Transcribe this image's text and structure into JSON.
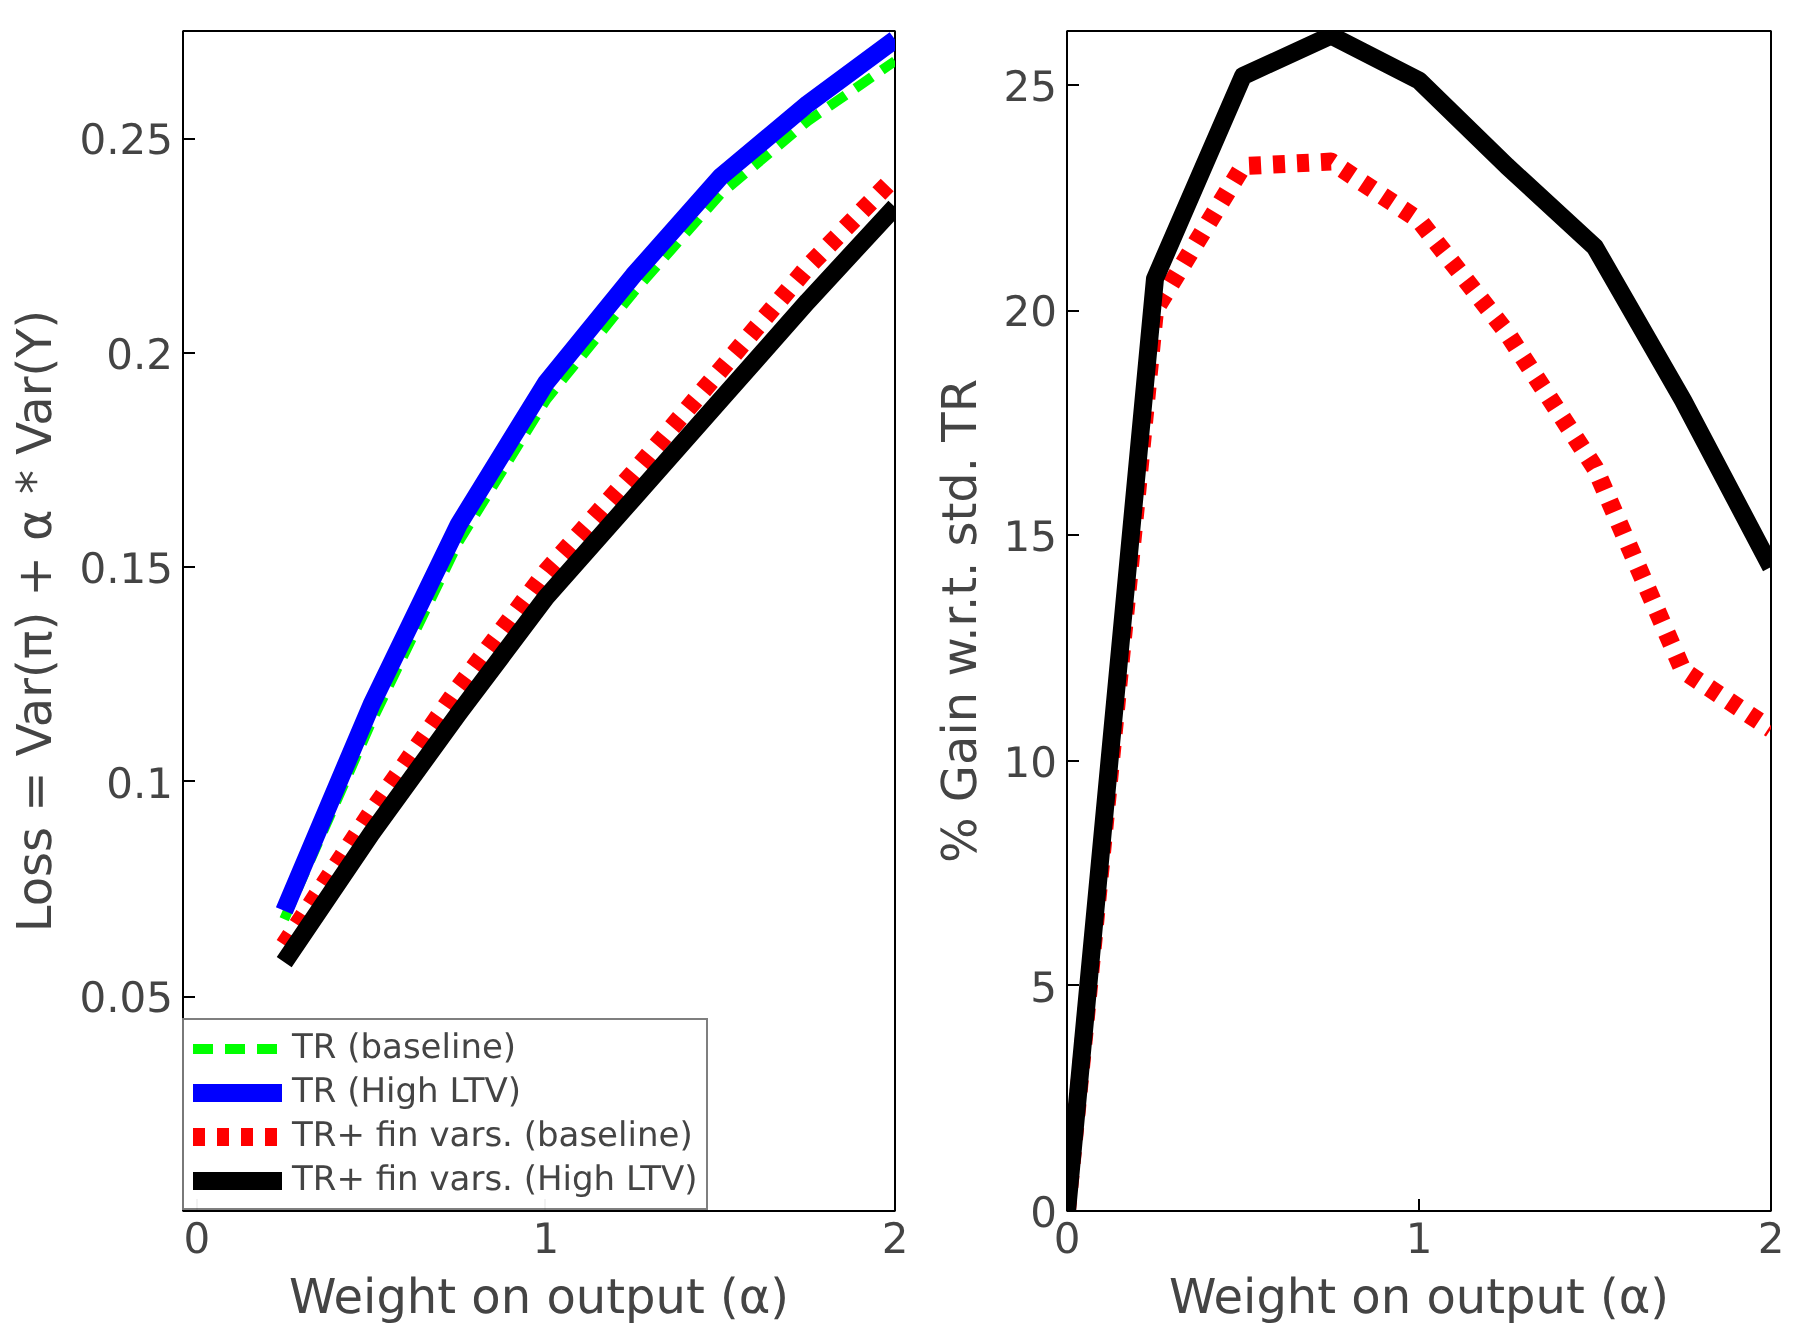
{
  "chart_data": [
    {
      "type": "line",
      "xlabel": "Weight on output (α)",
      "ylabel": "Loss = Var(π) + α * Var(Y)",
      "x": [
        0.25,
        0.5,
        0.75,
        1,
        1.25,
        1.5,
        1.75,
        2
      ],
      "xlim": [
        -0.04,
        2
      ],
      "xticks": [
        0,
        1,
        2
      ],
      "ylim": [
        0,
        0.275
      ],
      "yticks": [
        0.05,
        0.1,
        0.15,
        0.2,
        0.25
      ],
      "grid": false,
      "legend": "bottom left",
      "series": [
        {
          "name": "TR (baseline)",
          "color": "#00ff00",
          "line_style": "dashed",
          "values": [
            0.068,
            0.114,
            0.156,
            0.189,
            0.214,
            0.237,
            0.254,
            0.268
          ]
        },
        {
          "name": "TR (High LTV)",
          "color": "#0000ff",
          "line_style": "solid",
          "values": [
            0.07,
            0.118,
            0.16,
            0.193,
            0.218,
            0.241,
            0.258,
            0.273
          ]
        },
        {
          "name": "TR+ fin vars. (baseline)",
          "color": "#ff0000",
          "line_style": "dotted",
          "values": [
            0.062,
            0.093,
            0.122,
            0.149,
            0.172,
            0.196,
            0.22,
            0.241
          ]
        },
        {
          "name": "TR+ fin vars. (High LTV)",
          "color": "#000000",
          "line_style": "solid",
          "values": [
            0.058,
            0.088,
            0.116,
            0.143,
            0.166,
            0.189,
            0.212,
            0.234
          ]
        }
      ]
    },
    {
      "type": "line",
      "xlabel": "Weight on output (α)",
      "ylabel": "% Gain w.r.t. std. TR",
      "x": [
        0,
        0.25,
        0.5,
        0.75,
        1,
        1.25,
        1.5,
        1.75,
        2
      ],
      "xlim": [
        0,
        2
      ],
      "xticks": [
        0,
        1,
        2
      ],
      "ylim": [
        0,
        26.2
      ],
      "yticks": [
        0,
        5,
        10,
        15,
        20,
        25
      ],
      "grid": false,
      "legend": false,
      "series": [
        {
          "color": "#ff0000",
          "line_style": "dotted",
          "values": [
            0,
            20,
            23.2,
            23.3,
            22,
            19.5,
            16.5,
            12,
            10.7
          ]
        },
        {
          "color": "#000000",
          "line_style": "solid",
          "values": [
            0,
            20.7,
            25.2,
            26.1,
            25.1,
            23.2,
            21.4,
            18,
            14.3
          ]
        }
      ]
    }
  ]
}
